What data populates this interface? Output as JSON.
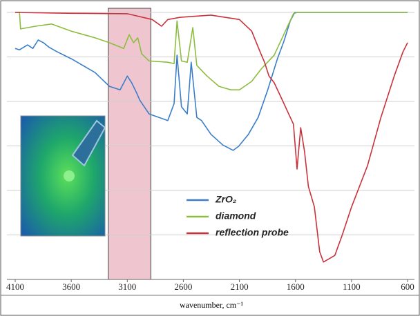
{
  "chart_data": {
    "type": "line",
    "xlabel": "wavenumber, cm⁻¹",
    "xlim": [
      4100,
      600
    ],
    "xticks": [
      4100,
      3600,
      3100,
      2600,
      2100,
      1600,
      1100,
      600
    ],
    "ylim": [
      0,
      6
    ],
    "yticks": [
      0,
      1,
      2,
      3,
      4,
      5,
      6
    ],
    "grid": true,
    "highlight": [
      3270,
      2890
    ],
    "highlight_color": "#efc6cf",
    "legend": "center",
    "series": [
      {
        "name": "ZrO₂",
        "color": "#3a7dc9",
        "x": [
          4100,
          4062,
          3990,
          3943,
          3895,
          3848,
          3800,
          3729,
          3600,
          3388,
          3260,
          3164,
          3100,
          3061,
          3017,
          2989,
          2906,
          2739,
          2683,
          2656,
          2617,
          2565,
          2530,
          2480,
          2438,
          2354,
          2248,
          2156,
          2107,
          2020,
          1933,
          1847,
          1761,
          1703,
          1646,
          1606,
          600
        ],
        "values": [
          5.19,
          5.16,
          5.27,
          5.19,
          5.38,
          5.32,
          5.22,
          5.12,
          4.96,
          4.65,
          4.34,
          4.26,
          4.57,
          4.42,
          4.19,
          4.03,
          3.72,
          3.57,
          3.95,
          5.04,
          3.88,
          3.72,
          4.88,
          3.64,
          3.57,
          3.26,
          3.02,
          2.9,
          2.99,
          3.26,
          3.64,
          4.26,
          4.96,
          5.35,
          5.81,
          6.0,
          6.0
        ]
      },
      {
        "name": "diamond",
        "color": "#8cbd3f",
        "x": [
          4100,
          4062,
          4052,
          3919,
          3776,
          3600,
          3388,
          3260,
          3132,
          3083,
          3044,
          3006,
          2972,
          2906,
          2739,
          2683,
          2656,
          2617,
          2565,
          2516,
          2480,
          2389,
          2283,
          2177,
          2100,
          1991,
          1905,
          1790,
          1675,
          1618,
          1586,
          600
        ],
        "values": [
          6.0,
          6.0,
          5.63,
          5.69,
          5.74,
          5.58,
          5.43,
          5.32,
          5.19,
          5.5,
          5.32,
          5.43,
          5.07,
          4.91,
          4.88,
          4.85,
          5.81,
          4.91,
          4.88,
          5.66,
          4.81,
          4.57,
          4.34,
          4.26,
          4.26,
          4.45,
          4.73,
          5.04,
          5.66,
          5.97,
          6.0,
          6.0
        ]
      },
      {
        "name": "reflection probe",
        "color": "#c8323a",
        "x": [
          4100,
          3600,
          3100,
          2878,
          2794,
          2739,
          2628,
          2354,
          2100,
          1991,
          1916,
          1876,
          1836,
          1790,
          1732,
          1675,
          1618,
          1586,
          1553,
          1519,
          1485,
          1431,
          1384,
          1350,
          1296,
          1249,
          1181,
          1100,
          957,
          838,
          719,
          640,
          600
        ],
        "values": [
          6.0,
          5.98,
          5.97,
          5.84,
          5.69,
          5.84,
          5.89,
          5.94,
          5.84,
          5.58,
          5.12,
          4.88,
          4.57,
          4.42,
          4.11,
          3.8,
          3.49,
          2.48,
          3.41,
          2.87,
          2.09,
          1.63,
          0.62,
          0.39,
          0.47,
          0.54,
          1.01,
          1.63,
          2.56,
          3.64,
          4.57,
          5.12,
          5.32
        ]
      }
    ]
  }
}
